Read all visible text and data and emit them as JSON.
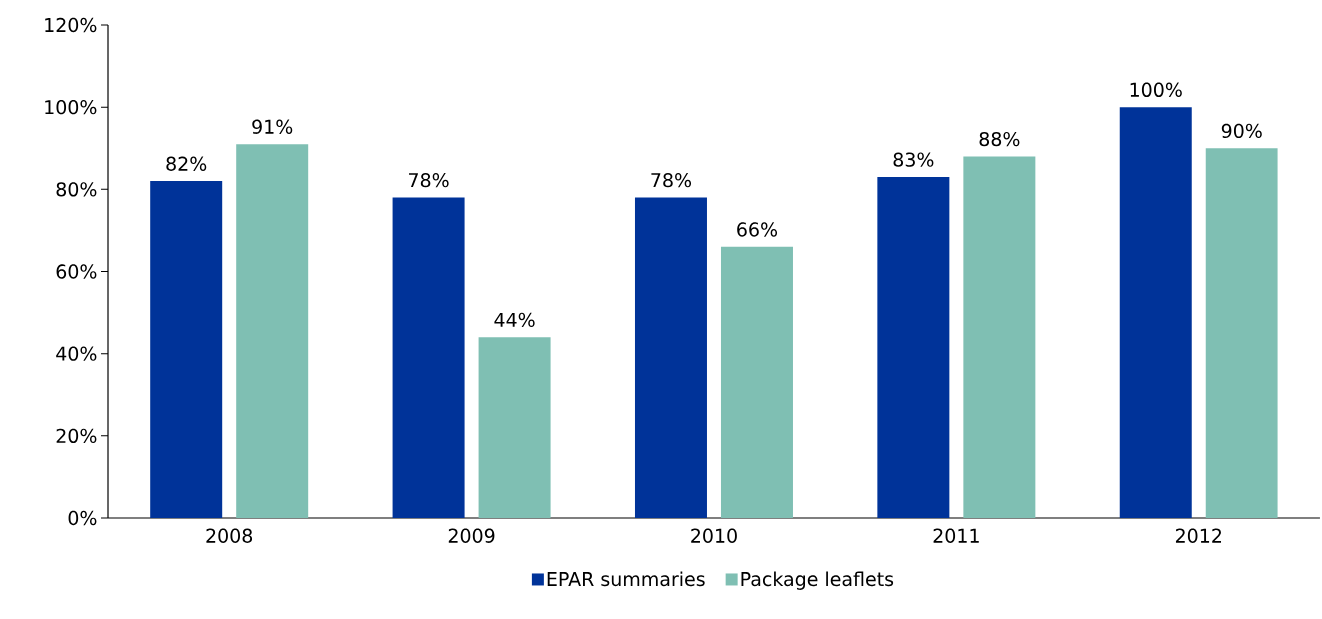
{
  "chart_data": {
    "type": "bar",
    "categories": [
      "2008",
      "2009",
      "2010",
      "2011",
      "2012"
    ],
    "series": [
      {
        "name": "EPAR summaries",
        "color": "#003399",
        "values": [
          82,
          78,
          78,
          83,
          100
        ],
        "value_labels": [
          "82%",
          "78%",
          "78%",
          "83%",
          "100%"
        ]
      },
      {
        "name": "Package leaflets",
        "color": "#7fbfb3",
        "values": [
          91,
          44,
          66,
          88,
          90
        ],
        "value_labels": [
          "91%",
          "44%",
          "66%",
          "88%",
          "90%"
        ]
      }
    ],
    "ylim": [
      0,
      120
    ],
    "yticks": [
      {
        "value": 0,
        "label": "0%"
      },
      {
        "value": 20,
        "label": "20%"
      },
      {
        "value": 40,
        "label": "40%"
      },
      {
        "value": 60,
        "label": "60%"
      },
      {
        "value": 80,
        "label": "80%"
      },
      {
        "value": 100,
        "label": "100%"
      },
      {
        "value": 120,
        "label": "120%"
      }
    ],
    "legend": "bottom"
  }
}
